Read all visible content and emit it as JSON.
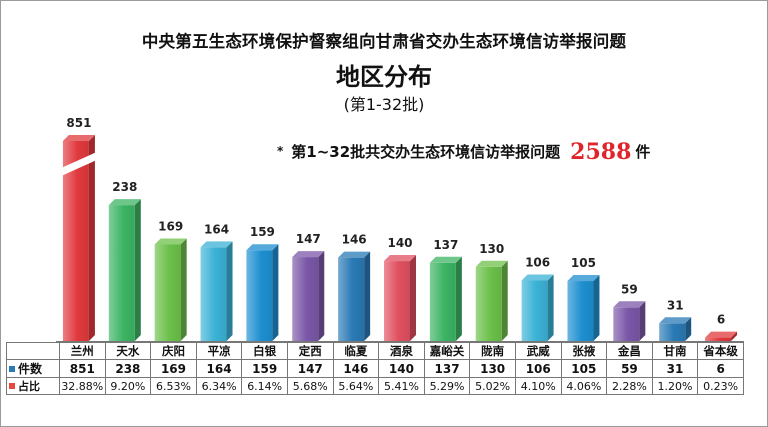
{
  "title_line1": "中央第五生态环境保护督察组向甘肃省交办生态环境信访举报问题",
  "title_line2": "地区分布",
  "title_line3": "(第1-32批)",
  "summary": {
    "prefix": "第1~32批共交办生态环境信访举报问题",
    "total": "2588",
    "unit": "件"
  },
  "table_labels": {
    "count": "件数",
    "share": "占比"
  },
  "legend_colors": {
    "count": "#2a7ab5",
    "share": "#e8483c"
  },
  "chart_data": {
    "type": "bar",
    "categories": [
      "兰州",
      "天水",
      "庆阳",
      "平凉",
      "白银",
      "定西",
      "临夏",
      "酒泉",
      "嘉峪关",
      "陇南",
      "武威",
      "张掖",
      "金昌",
      "甘南",
      "省本级"
    ],
    "values": [
      851,
      238,
      169,
      164,
      159,
      147,
      146,
      140,
      137,
      130,
      106,
      105,
      59,
      31,
      6
    ],
    "value_labels": [
      "851",
      "238",
      "169",
      "164",
      "159",
      "147",
      "146",
      "140",
      "137",
      "130",
      "106",
      "105",
      "59",
      "31",
      "6"
    ],
    "shares": [
      "32.88%",
      "9.20%",
      "6.53%",
      "6.34%",
      "6.14%",
      "5.68%",
      "5.64%",
      "5.41%",
      "5.29%",
      "5.02%",
      "4.10%",
      "4.06%",
      "2.28%",
      "1.20%",
      "0.23%"
    ],
    "axis_break": true,
    "colors": [
      "#e03a3e",
      "#3cb464",
      "#6cc04a",
      "#3bb2d6",
      "#1e8fd0",
      "#7b57a8",
      "#2a7ab5",
      "#e05060",
      "#3cb464",
      "#6cc04a",
      "#3bb2d6",
      "#1e8fd0",
      "#7b57a8",
      "#2a7ab5",
      "#e03a3e"
    ]
  }
}
